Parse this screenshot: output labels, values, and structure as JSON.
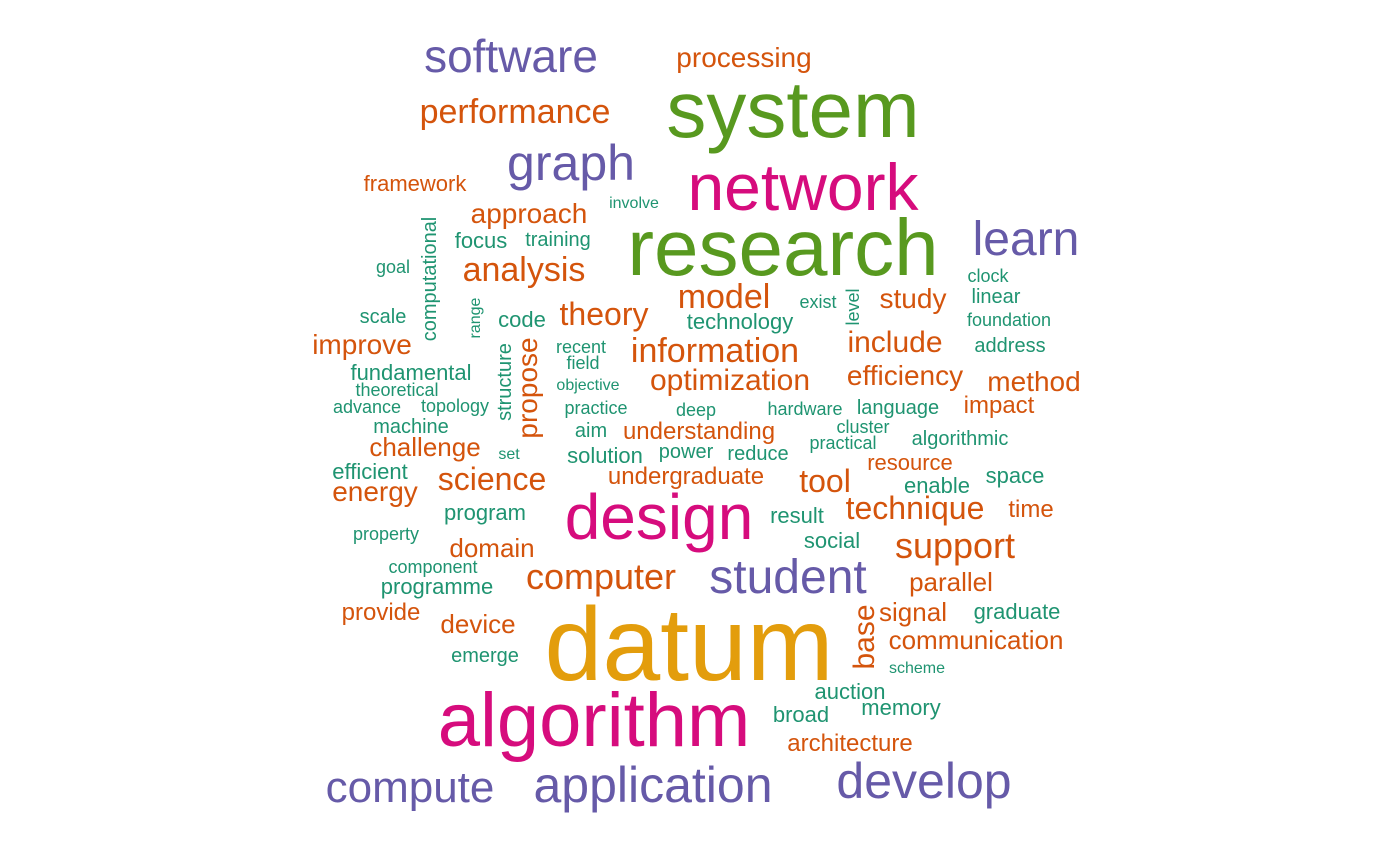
{
  "palette": {
    "green": "#58991f",
    "orange": "#e39d0c",
    "magenta": "#d60c7d",
    "purple": "#665aa8",
    "red": "#d4540c",
    "teal": "#1f9471"
  },
  "words": [
    {
      "text": "datum",
      "color": "#e39d0c"
    },
    {
      "text": "research",
      "color": "#58991f"
    },
    {
      "text": "system",
      "color": "#58991f"
    },
    {
      "text": "algorithm",
      "color": "#d60c7d"
    },
    {
      "text": "network",
      "color": "#d60c7d"
    },
    {
      "text": "design",
      "color": "#d60c7d"
    },
    {
      "text": "software",
      "color": "#665aa8"
    },
    {
      "text": "graph",
      "color": "#665aa8"
    },
    {
      "text": "learn",
      "color": "#665aa8"
    },
    {
      "text": "student",
      "color": "#665aa8"
    },
    {
      "text": "application",
      "color": "#665aa8"
    },
    {
      "text": "develop",
      "color": "#665aa8"
    },
    {
      "text": "compute",
      "color": "#665aa8"
    },
    {
      "text": "processing",
      "color": "#d4540c"
    },
    {
      "text": "performance",
      "color": "#d4540c"
    },
    {
      "text": "framework",
      "color": "#d4540c"
    },
    {
      "text": "approach",
      "color": "#d4540c"
    },
    {
      "text": "analysis",
      "color": "#d4540c"
    },
    {
      "text": "model",
      "color": "#d4540c"
    },
    {
      "text": "study",
      "color": "#d4540c"
    },
    {
      "text": "theory",
      "color": "#d4540c"
    },
    {
      "text": "information",
      "color": "#d4540c"
    },
    {
      "text": "include",
      "color": "#d4540c"
    },
    {
      "text": "improve",
      "color": "#d4540c"
    },
    {
      "text": "optimization",
      "color": "#d4540c"
    },
    {
      "text": "efficiency",
      "color": "#d4540c"
    },
    {
      "text": "method",
      "color": "#d4540c"
    },
    {
      "text": "propose",
      "color": "#d4540c"
    },
    {
      "text": "impact",
      "color": "#d4540c"
    },
    {
      "text": "understanding",
      "color": "#d4540c"
    },
    {
      "text": "challenge",
      "color": "#d4540c"
    },
    {
      "text": "science",
      "color": "#d4540c"
    },
    {
      "text": "undergraduate",
      "color": "#d4540c"
    },
    {
      "text": "tool",
      "color": "#d4540c"
    },
    {
      "text": "resource",
      "color": "#d4540c"
    },
    {
      "text": "energy",
      "color": "#d4540c"
    },
    {
      "text": "technique",
      "color": "#d4540c"
    },
    {
      "text": "time",
      "color": "#d4540c"
    },
    {
      "text": "domain",
      "color": "#d4540c"
    },
    {
      "text": "support",
      "color": "#d4540c"
    },
    {
      "text": "computer",
      "color": "#d4540c"
    },
    {
      "text": "parallel",
      "color": "#d4540c"
    },
    {
      "text": "provide",
      "color": "#d4540c"
    },
    {
      "text": "device",
      "color": "#d4540c"
    },
    {
      "text": "base",
      "color": "#d4540c"
    },
    {
      "text": "signal",
      "color": "#d4540c"
    },
    {
      "text": "communication",
      "color": "#d4540c"
    },
    {
      "text": "architecture",
      "color": "#d4540c"
    },
    {
      "text": "involve",
      "color": "#1f9471"
    },
    {
      "text": "computational",
      "color": "#1f9471"
    },
    {
      "text": "focus",
      "color": "#1f9471"
    },
    {
      "text": "training",
      "color": "#1f9471"
    },
    {
      "text": "goal",
      "color": "#1f9471"
    },
    {
      "text": "clock",
      "color": "#1f9471"
    },
    {
      "text": "linear",
      "color": "#1f9471"
    },
    {
      "text": "exist",
      "color": "#1f9471"
    },
    {
      "text": "level",
      "color": "#1f9471"
    },
    {
      "text": "range",
      "color": "#1f9471"
    },
    {
      "text": "scale",
      "color": "#1f9471"
    },
    {
      "text": "code",
      "color": "#1f9471"
    },
    {
      "text": "technology",
      "color": "#1f9471"
    },
    {
      "text": "foundation",
      "color": "#1f9471"
    },
    {
      "text": "recent",
      "color": "#1f9471"
    },
    {
      "text": "field",
      "color": "#1f9471"
    },
    {
      "text": "address",
      "color": "#1f9471"
    },
    {
      "text": "fundamental",
      "color": "#1f9471"
    },
    {
      "text": "theoretical",
      "color": "#1f9471"
    },
    {
      "text": "structure",
      "color": "#1f9471"
    },
    {
      "text": "objective",
      "color": "#1f9471"
    },
    {
      "text": "advance",
      "color": "#1f9471"
    },
    {
      "text": "topology",
      "color": "#1f9471"
    },
    {
      "text": "practice",
      "color": "#1f9471"
    },
    {
      "text": "deep",
      "color": "#1f9471"
    },
    {
      "text": "hardware",
      "color": "#1f9471"
    },
    {
      "text": "language",
      "color": "#1f9471"
    },
    {
      "text": "machine",
      "color": "#1f9471"
    },
    {
      "text": "aim",
      "color": "#1f9471"
    },
    {
      "text": "cluster",
      "color": "#1f9471"
    },
    {
      "text": "practical",
      "color": "#1f9471"
    },
    {
      "text": "algorithmic",
      "color": "#1f9471"
    },
    {
      "text": "set",
      "color": "#1f9471"
    },
    {
      "text": "power",
      "color": "#1f9471"
    },
    {
      "text": "reduce",
      "color": "#1f9471"
    },
    {
      "text": "solution",
      "color": "#1f9471"
    },
    {
      "text": "efficient",
      "color": "#1f9471"
    },
    {
      "text": "space",
      "color": "#1f9471"
    },
    {
      "text": "enable",
      "color": "#1f9471"
    },
    {
      "text": "program",
      "color": "#1f9471"
    },
    {
      "text": "result",
      "color": "#1f9471"
    },
    {
      "text": "property",
      "color": "#1f9471"
    },
    {
      "text": "social",
      "color": "#1f9471"
    },
    {
      "text": "component",
      "color": "#1f9471"
    },
    {
      "text": "programme",
      "color": "#1f9471"
    },
    {
      "text": "graduate",
      "color": "#1f9471"
    },
    {
      "text": "emerge",
      "color": "#1f9471"
    },
    {
      "text": "scheme",
      "color": "#1f9471"
    },
    {
      "text": "auction",
      "color": "#1f9471"
    },
    {
      "text": "broad",
      "color": "#1f9471"
    },
    {
      "text": "memory",
      "color": "#1f9471"
    }
  ]
}
